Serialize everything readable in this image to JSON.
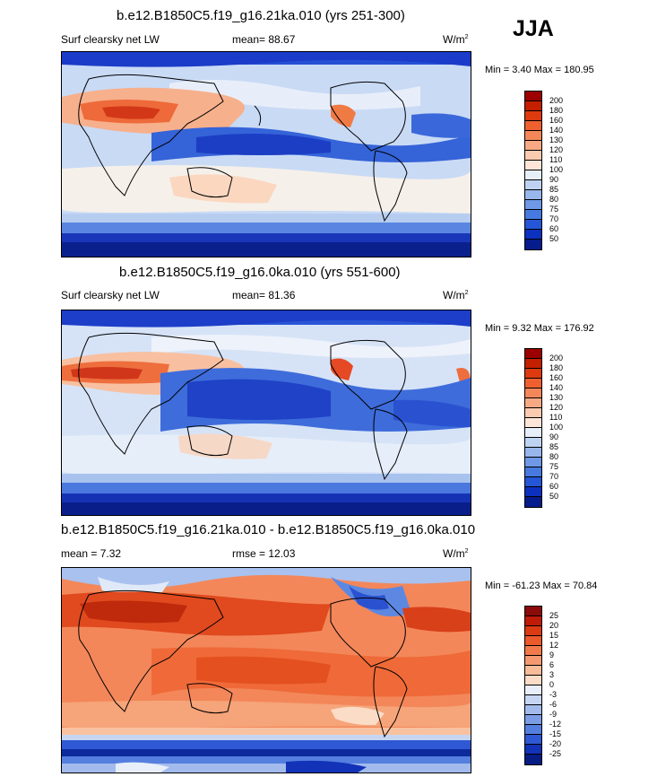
{
  "season": "JJA",
  "panels": [
    {
      "title": "b.e12.B1850C5.f19_g16.21ka.010 (yrs 251-300)",
      "left_label": "Surf clearsky net LW",
      "mean_label": "mean=",
      "mean_value": "88.67",
      "units": "W/m",
      "units_sup": "2",
      "min_label": "Min =",
      "min_value": "3.40",
      "max_label": "Max =",
      "max_value": "180.95",
      "colorbar": {
        "labels": [
          "200",
          "180",
          "160",
          "140",
          "130",
          "120",
          "110",
          "100",
          "90",
          "85",
          "80",
          "75",
          "70",
          "60",
          "50"
        ],
        "colors": [
          "#9c0000",
          "#c42000",
          "#dd3a10",
          "#ef6030",
          "#f4875a",
          "#f7a984",
          "#fbcbb0",
          "#fde6d7",
          "#e6eef8",
          "#bed3f1",
          "#97b6ec",
          "#6f98e6",
          "#477ae0",
          "#2556d8",
          "#0c30c0",
          "#061c8c"
        ]
      }
    },
    {
      "title": "b.e12.B1850C5.f19_g16.0ka.010 (yrs 551-600)",
      "left_label": "Surf clearsky net LW",
      "mean_label": "mean=",
      "mean_value": "81.36",
      "units": "W/m",
      "units_sup": "2",
      "min_label": "Min =",
      "min_value": "9.32",
      "max_label": "Max =",
      "max_value": "176.92",
      "colorbar": {
        "labels": [
          "200",
          "180",
          "160",
          "140",
          "130",
          "120",
          "110",
          "100",
          "90",
          "85",
          "80",
          "75",
          "70",
          "60",
          "50"
        ],
        "colors": [
          "#9c0000",
          "#c42000",
          "#dd3a10",
          "#ef6030",
          "#f4875a",
          "#f7a984",
          "#fbcbb0",
          "#fde6d7",
          "#e6eef8",
          "#bed3f1",
          "#97b6ec",
          "#6f98e6",
          "#477ae0",
          "#2556d8",
          "#0c30c0",
          "#061c8c"
        ]
      }
    },
    {
      "title": "b.e12.B1850C5.f19_g16.21ka.010 - b.e12.B1850C5.f19_g16.0ka.010",
      "left_label": "mean =",
      "left_value": "7.32",
      "mean_label": "rmse =",
      "mean_value": "12.03",
      "units": "W/m",
      "units_sup": "2",
      "min_label": "Min =",
      "min_value": "-61.23",
      "max_label": "Max =",
      "max_value": "70.84",
      "colorbar": {
        "labels": [
          "25",
          "20",
          "15",
          "12",
          "9",
          "6",
          "3",
          "0",
          "-3",
          "-6",
          "-9",
          "-12",
          "-15",
          "-20",
          "-25"
        ],
        "colors": [
          "#8c0a0a",
          "#c01a08",
          "#dc3a14",
          "#ec5a2c",
          "#f27a4a",
          "#f59a70",
          "#f8bc98",
          "#fbdcc6",
          "#e8eefa",
          "#c6d6f2",
          "#a2bbec",
          "#7c9de6",
          "#557fdf",
          "#2e58d4",
          "#1232b8",
          "#061c84"
        ]
      }
    }
  ]
}
